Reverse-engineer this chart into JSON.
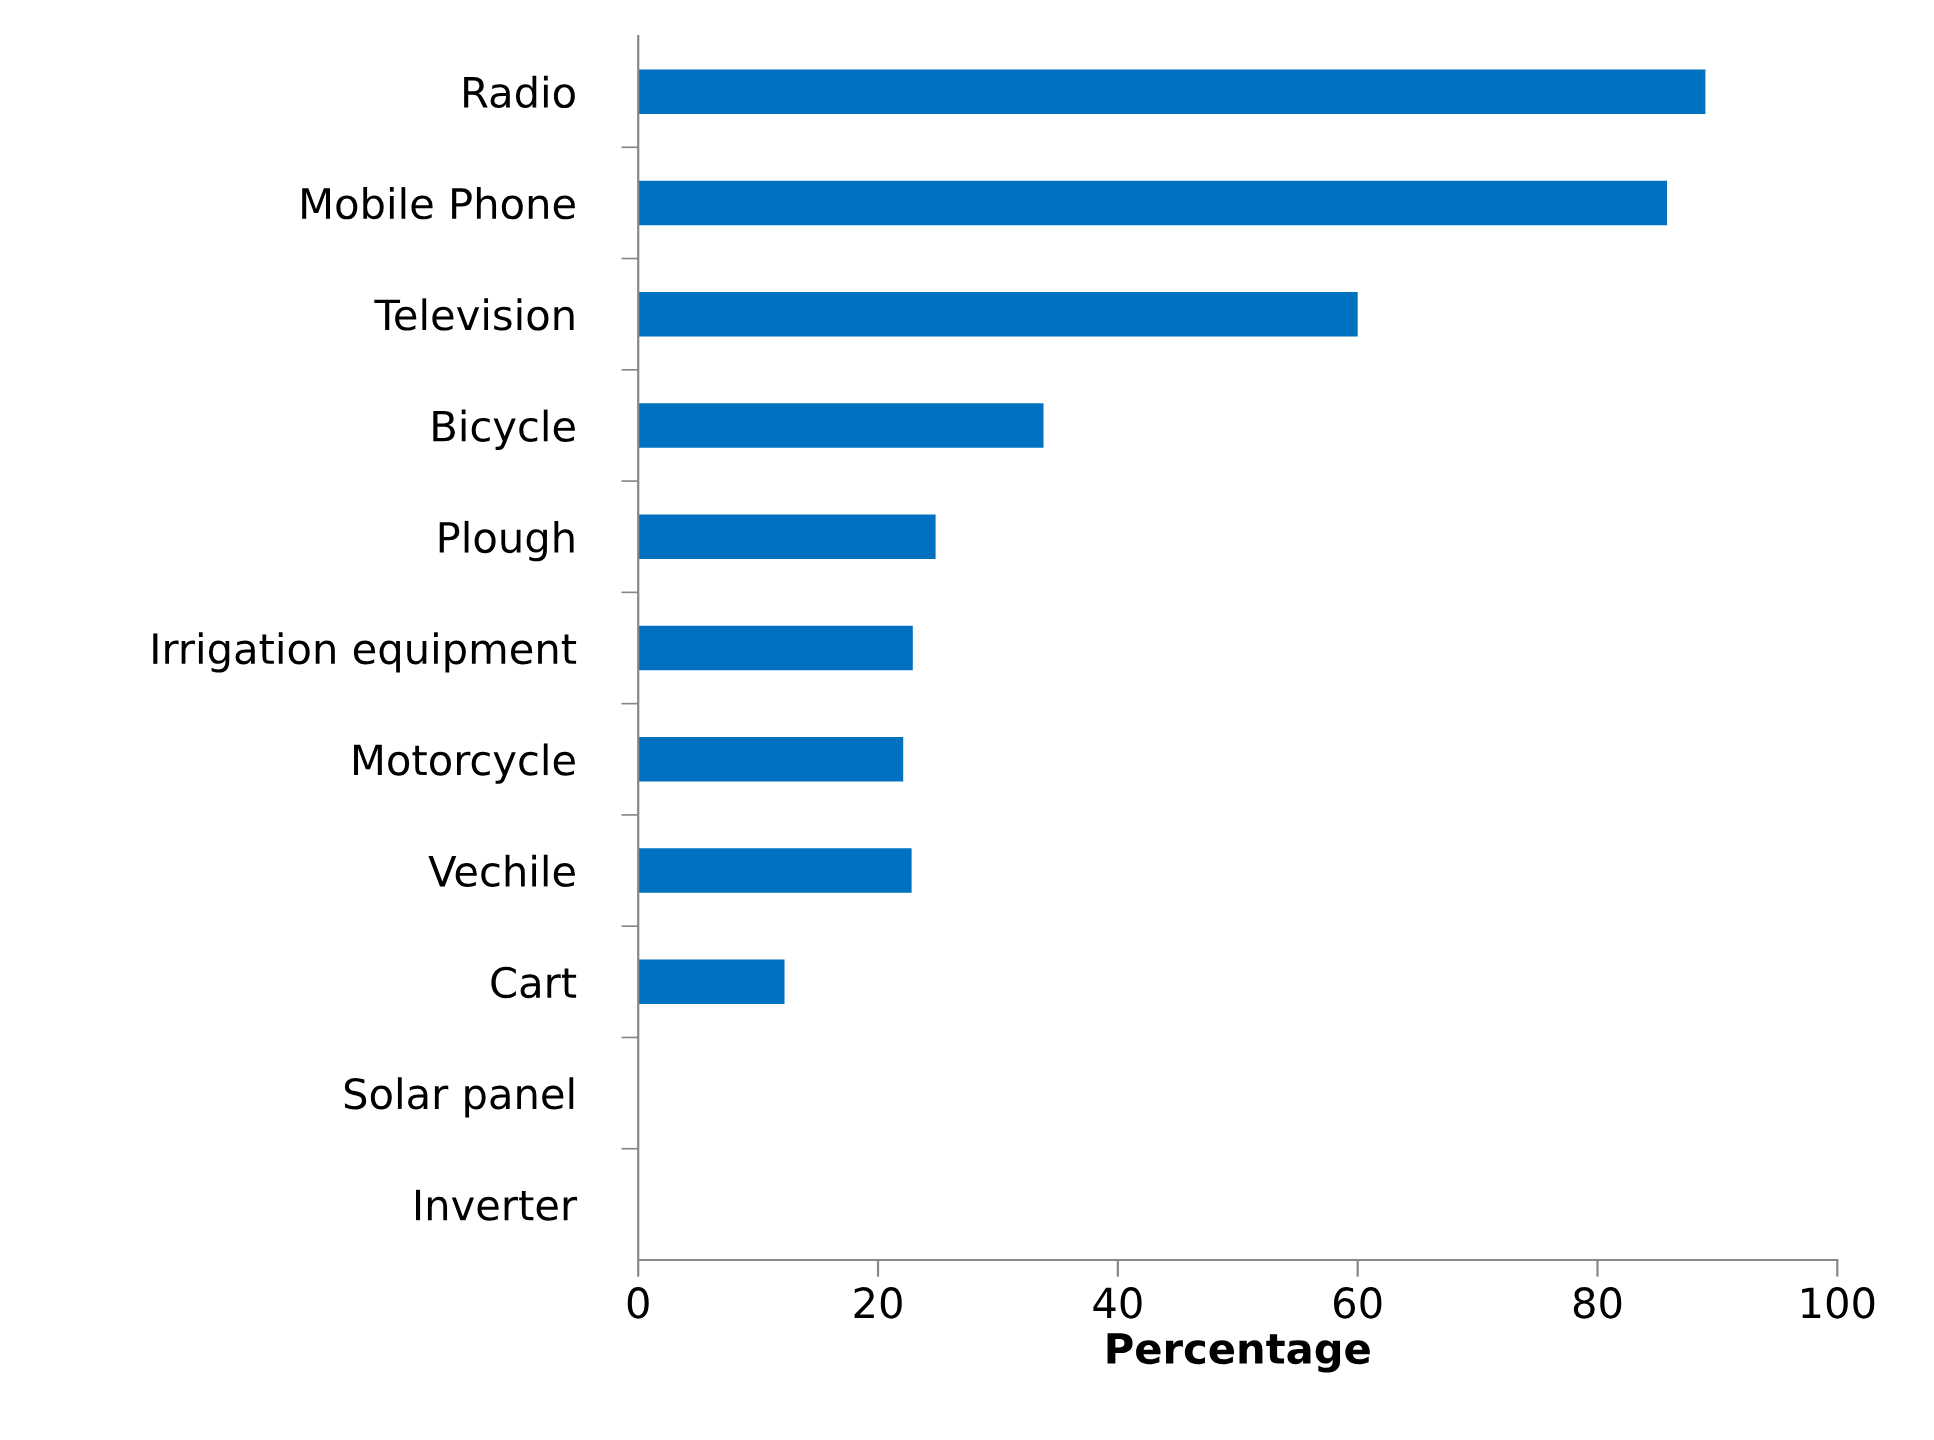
{
  "chart_data": {
    "type": "bar",
    "orientation": "horizontal",
    "xlabel": "Percentage",
    "categories": [
      "Radio",
      "Mobile Phone",
      "Television",
      "Bicycle",
      "Plough",
      "Irrigation equipment",
      "Motorcycle",
      "Vechile",
      "Cart",
      "Solar panel",
      "Inverter"
    ],
    "values": [
      89,
      85.8,
      60,
      33.8,
      24.8,
      22.9,
      22.1,
      22.8,
      12.2,
      0,
      0
    ],
    "color": "#0070c0",
    "xlim": [
      0,
      100
    ],
    "xticks": [
      0,
      20,
      40,
      60,
      80,
      100
    ],
    "grid": false,
    "legend": false
  }
}
